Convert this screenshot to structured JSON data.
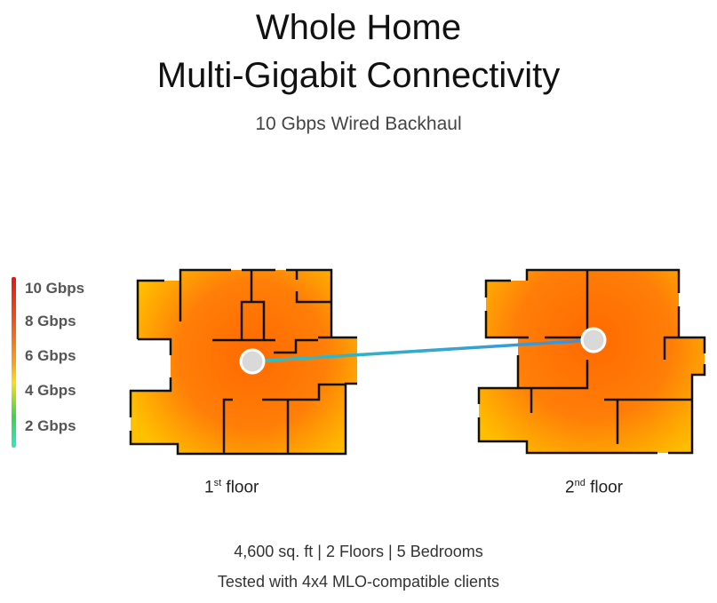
{
  "header": {
    "title_line1": "Whole Home",
    "title_line2": "Multi-Gigabit Connectivity",
    "subtitle": "10 Gbps Wired Backhaul"
  },
  "legend": {
    "items": [
      "10 Gbps",
      "8 Gbps",
      "6 Gbps",
      "4 Gbps",
      "2 Gbps"
    ],
    "colors": {
      "top": "#e01818",
      "mid": "#f8a020",
      "low": "#40d050",
      "bottom": "#30e8c0"
    }
  },
  "floors": [
    {
      "num": "1",
      "sup": "st",
      "label": " floor"
    },
    {
      "num": "2",
      "sup": "nd",
      "label": " floor"
    }
  ],
  "backhaul": {
    "colors": [
      "#3aa0e0",
      "#30c0c0"
    ]
  },
  "heat_colors": {
    "strong": "#ff6a00",
    "edge": "#ffc400"
  },
  "footer": {
    "line1": "4,600 sq. ft | 2 Floors | 5 Bedrooms",
    "line2": "Tested with 4x4 MLO-compatible clients"
  }
}
